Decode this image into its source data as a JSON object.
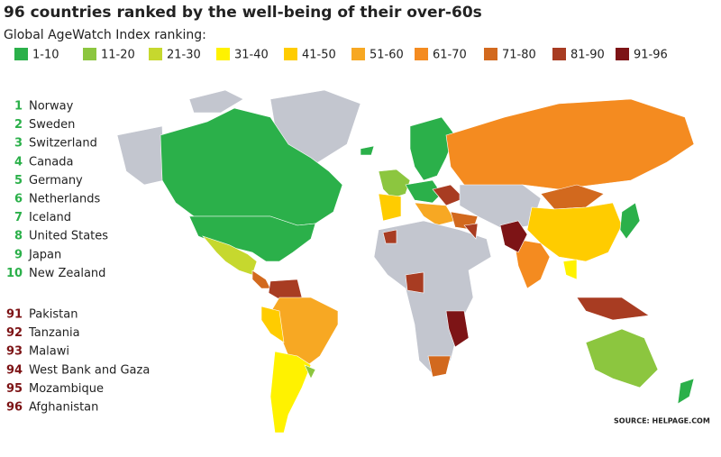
{
  "header": {
    "title": "96 countries ranked by the well-being of their over-60s",
    "subtitle": "Global AgeWatch Index ranking:"
  },
  "legend": [
    {
      "label": "1-10",
      "color": "#2bb04a"
    },
    {
      "label": "11-20",
      "color": "#8cc63f"
    },
    {
      "label": "21-30",
      "color": "#c6d82e"
    },
    {
      "label": "31-40",
      "color": "#fff200"
    },
    {
      "label": "41-50",
      "color": "#ffcc00"
    },
    {
      "label": "51-60",
      "color": "#f7a823"
    },
    {
      "label": "61-70",
      "color": "#f48b20"
    },
    {
      "label": "71-80",
      "color": "#d2691e"
    },
    {
      "label": "81-90",
      "color": "#a83c22"
    },
    {
      "label": "91-96",
      "color": "#7d1416"
    }
  ],
  "top": [
    {
      "rank": 1,
      "name": "Norway"
    },
    {
      "rank": 2,
      "name": "Sweden"
    },
    {
      "rank": 3,
      "name": "Switzerland"
    },
    {
      "rank": 4,
      "name": "Canada"
    },
    {
      "rank": 5,
      "name": "Germany"
    },
    {
      "rank": 6,
      "name": "Netherlands"
    },
    {
      "rank": 7,
      "name": "Iceland"
    },
    {
      "rank": 8,
      "name": "United States"
    },
    {
      "rank": 9,
      "name": "Japan"
    },
    {
      "rank": 10,
      "name": "New Zealand"
    }
  ],
  "bottom": [
    {
      "rank": 91,
      "name": "Pakistan"
    },
    {
      "rank": 92,
      "name": "Tanzania"
    },
    {
      "rank": 93,
      "name": "Malawi"
    },
    {
      "rank": 94,
      "name": "West Bank and Gaza"
    },
    {
      "rank": 95,
      "name": "Mozambique"
    },
    {
      "rank": 96,
      "name": "Afghanistan"
    }
  ],
  "source": "SOURCE: HELPAGE.COM"
}
